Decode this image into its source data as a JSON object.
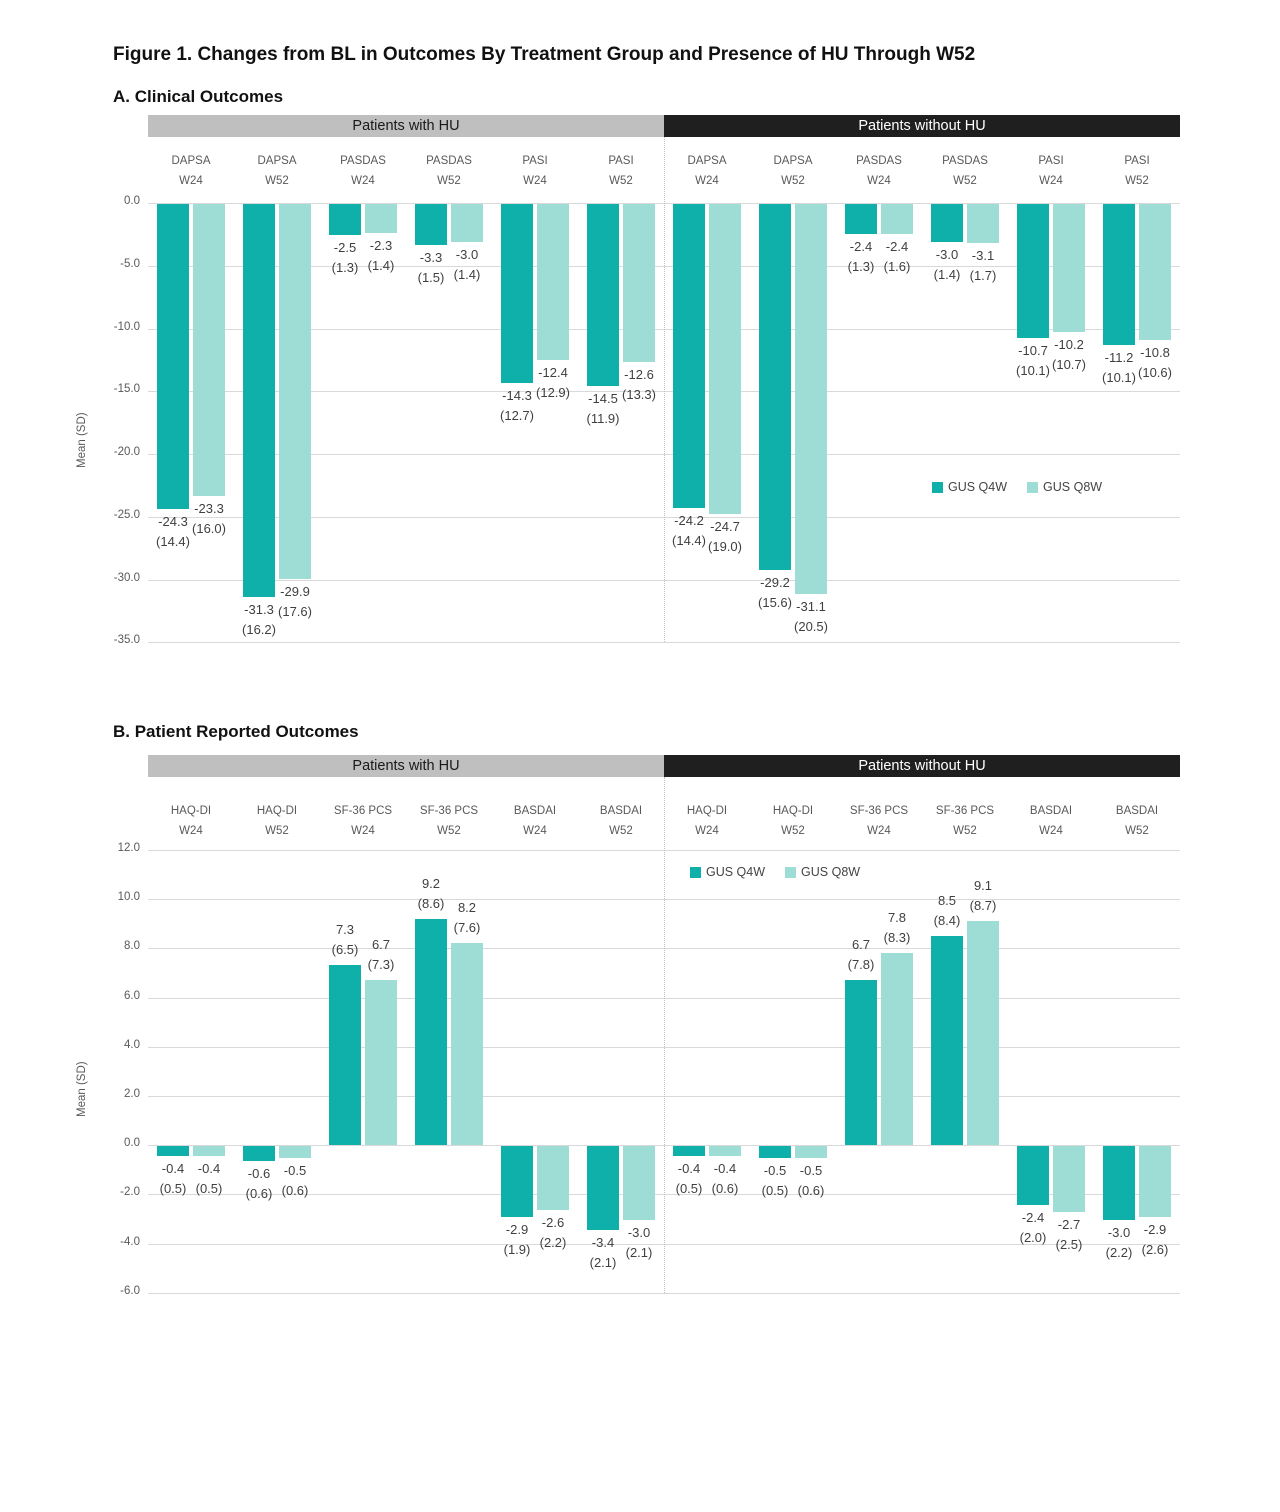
{
  "figure": {
    "title": "Figure 1. Changes from BL in Outcomes By Treatment Group and Presence of HU Through W52"
  },
  "panel_a": {
    "heading": "A. Clinical Outcomes"
  },
  "panel_b": {
    "heading": "B. Patient Reported Outcomes"
  },
  "colors": {
    "gus_q4w": "#0EB0A9",
    "gus_q8w": "#9EDCD6",
    "band_with_hu_bg": "#BFBFBF",
    "band_without_hu_bg": "#1F1F1F",
    "gridline": "#D9D9D9",
    "axis_text": "#595959",
    "label_text": "#3F3F3F"
  },
  "chart_data": [
    {
      "type": "bar",
      "panel": "A. Clinical Outcomes",
      "ylabel": "Mean (SD)",
      "ylim": [
        -35,
        0
      ],
      "yticks": [
        0,
        -5,
        -10,
        -15,
        -20,
        -25,
        -30,
        -35
      ],
      "grid": true,
      "legend_position": "inside-right",
      "legend": [
        "GUS Q4W",
        "GUS Q8W"
      ],
      "group_headers": [
        "Patients with HU",
        "Patients without HU"
      ],
      "categories": [
        "DAPSA W24",
        "DAPSA W52",
        "PASDAS W24",
        "PASDAS W52",
        "PASI W24",
        "PASI W52",
        "DAPSA W24",
        "DAPSA W52",
        "PASDAS W24",
        "PASDAS W52",
        "PASI W24",
        "PASI W52"
      ],
      "series": [
        {
          "name": "GUS Q4W",
          "values": [
            -24.3,
            -31.3,
            -2.5,
            -3.3,
            -14.3,
            -14.5,
            -24.2,
            -29.2,
            -2.4,
            -3.0,
            -10.7,
            -11.2
          ],
          "sd": [
            14.4,
            16.2,
            1.3,
            1.5,
            12.7,
            11.9,
            14.4,
            15.6,
            1.3,
            1.4,
            10.1,
            10.1
          ]
        },
        {
          "name": "GUS Q8W",
          "values": [
            -23.3,
            -29.9,
            -2.3,
            -3.0,
            -12.4,
            -12.6,
            -24.7,
            -31.1,
            -2.4,
            -3.1,
            -10.2,
            -10.8
          ],
          "sd": [
            16.0,
            17.6,
            1.4,
            1.4,
            12.9,
            13.3,
            19.0,
            20.5,
            1.6,
            1.7,
            10.7,
            10.6
          ]
        }
      ]
    },
    {
      "type": "bar",
      "panel": "B. Patient Reported Outcomes",
      "ylabel": "Mean (SD)",
      "ylim": [
        -6,
        12
      ],
      "yticks": [
        12,
        10,
        8,
        6,
        4,
        2,
        0,
        -2,
        -4,
        -6
      ],
      "grid": true,
      "legend_position": "inside-top",
      "legend": [
        "GUS Q4W",
        "GUS Q8W"
      ],
      "group_headers": [
        "Patients with HU",
        "Patients without HU"
      ],
      "categories": [
        "HAQ-DI W24",
        "HAQ-DI W52",
        "SF-36 PCS W24",
        "SF-36 PCS W52",
        "BASDAI W24",
        "BASDAI W52",
        "HAQ-DI W24",
        "HAQ-DI W52",
        "SF-36 PCS W24",
        "SF-36 PCS W52",
        "BASDAI W24",
        "BASDAI W52"
      ],
      "series": [
        {
          "name": "GUS Q4W",
          "values": [
            -0.4,
            -0.6,
            7.3,
            9.2,
            -2.9,
            -3.4,
            -0.4,
            -0.5,
            6.7,
            8.5,
            -2.4,
            -3.0
          ],
          "sd": [
            0.5,
            0.6,
            6.5,
            8.6,
            1.9,
            2.1,
            0.5,
            0.5,
            7.8,
            8.4,
            2.0,
            2.2
          ]
        },
        {
          "name": "GUS Q8W",
          "values": [
            -0.4,
            -0.5,
            6.7,
            8.2,
            -2.6,
            -3.0,
            -0.4,
            -0.5,
            7.8,
            9.1,
            -2.7,
            -2.9
          ],
          "sd": [
            0.5,
            0.6,
            7.3,
            7.6,
            2.2,
            2.1,
            0.6,
            0.6,
            8.3,
            8.7,
            2.5,
            2.6
          ]
        }
      ]
    }
  ]
}
